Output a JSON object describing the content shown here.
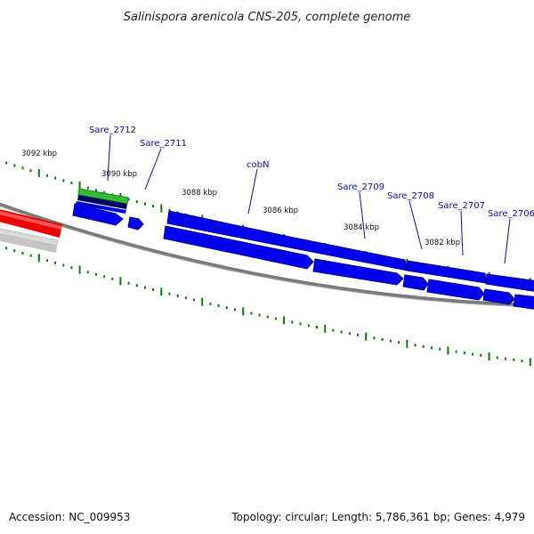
{
  "header": {
    "title": "Salinispora arenicola CNS-205, complete genome"
  },
  "footer": {
    "accession": "Accession: NC_009953",
    "summary": "Topology: circular; Length: 5,786,361 bp; Genes: 4,979"
  },
  "colors": {
    "backbone": "#777777",
    "cds": "#0000ee",
    "cds_dark": "#00006a",
    "rna_green": "#33bb33",
    "red_feature": "#ee0000",
    "grey_feature": "#bbbbbb",
    "tick": "#0a7a0a",
    "label": "#0a0ab0"
  },
  "ruler": {
    "labels": [
      "3092 kbp",
      "3090 kbp",
      "3088 kbp",
      "3086 kbp",
      "3084 kbp",
      "3082 kbp"
    ]
  },
  "genes": [
    {
      "label": "Sare_2712"
    },
    {
      "label": "Sare_2711"
    },
    {
      "label": "cobN"
    },
    {
      "label": "Sare_2709"
    },
    {
      "label": "Sare_2708"
    },
    {
      "label": "Sare_2707"
    },
    {
      "label": "Sare_2706"
    }
  ]
}
